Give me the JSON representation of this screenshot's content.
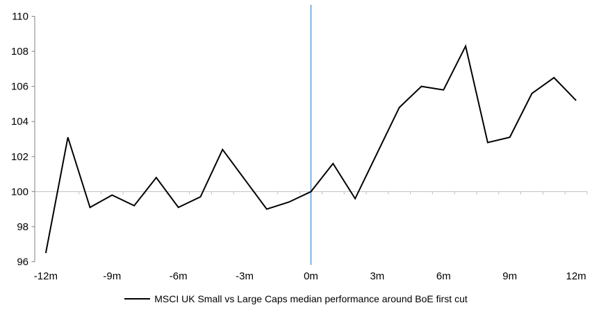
{
  "chart_data": {
    "type": "line",
    "title": "",
    "xlabel": "",
    "ylabel": "",
    "x": [
      -12,
      -11,
      -10,
      -9,
      -8,
      -7,
      -6,
      -5,
      -4,
      -3,
      -2,
      -1,
      0,
      1,
      2,
      3,
      4,
      5,
      6,
      7,
      8,
      9,
      10,
      11,
      12
    ],
    "series": [
      {
        "name": "MSCI UK Small vs Large Caps median performance around BoE first cut",
        "color": "#000000",
        "values": [
          96.5,
          103.1,
          99.1,
          99.8,
          99.2,
          100.8,
          99.1,
          99.7,
          102.4,
          100.7,
          99.0,
          99.4,
          100.0,
          101.6,
          99.6,
          102.2,
          104.8,
          106.0,
          105.8,
          108.3,
          102.8,
          103.1,
          105.6,
          106.5,
          105.2
        ]
      }
    ],
    "ylim": [
      96,
      110
    ],
    "ytick_step": 2,
    "ytick_labels": [
      "96",
      "98",
      "100",
      "102",
      "104",
      "106",
      "108",
      "110"
    ],
    "xtick_positions": [
      -12,
      -9,
      -6,
      -3,
      0,
      3,
      6,
      9,
      12
    ],
    "xtick_labels": [
      "-12m",
      "-9m",
      "-6m",
      "-3m",
      "0m",
      "3m",
      "6m",
      "9m",
      "12m"
    ],
    "grid": false,
    "legend_position": "bottom",
    "event_line": {
      "x": 0,
      "color": "#5B9BD5"
    },
    "baseline": {
      "y": 100,
      "color": "#BFBFBF"
    },
    "axis_color": "#808080",
    "tick_label_color": "#000000"
  }
}
